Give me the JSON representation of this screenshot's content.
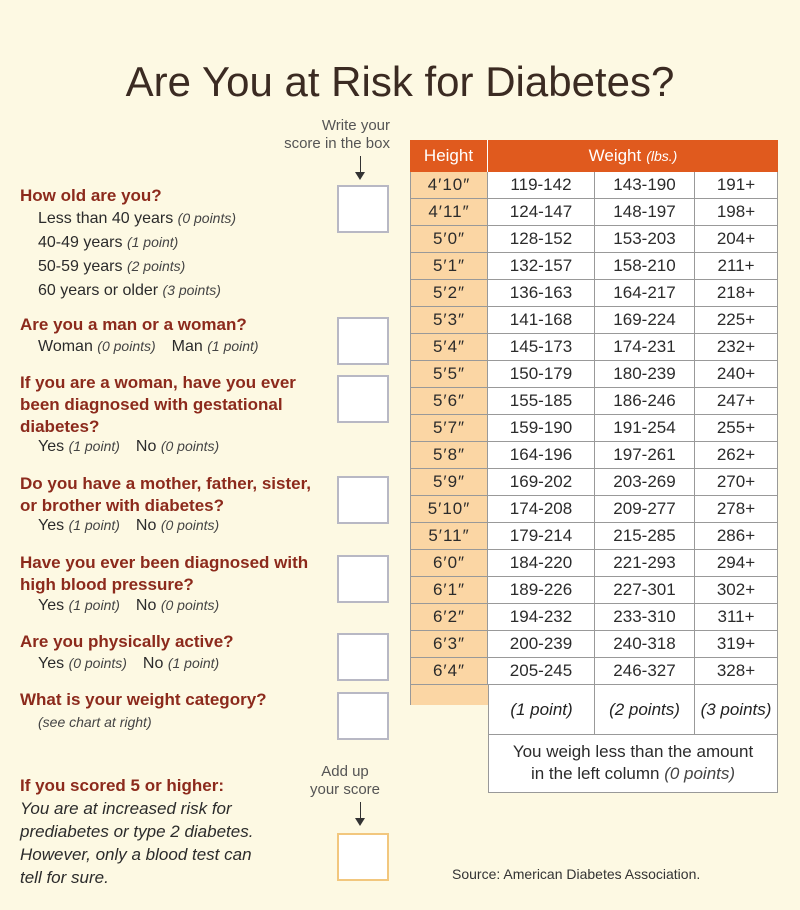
{
  "title": "Are You at Risk for Diabetes?",
  "score_hint": [
    "Write your",
    "score in the box"
  ],
  "questions": [
    {
      "question": "How old are you?",
      "options": [
        {
          "label": "Less than 40 years",
          "points": "(0 points)"
        },
        {
          "label": "40-49 years",
          "points": "(1 point)"
        },
        {
          "label": "50-59 years",
          "points": "(2 points)"
        },
        {
          "label": "60 years or older",
          "points": "(3 points)"
        }
      ]
    },
    {
      "question": "Are you a man or a woman?",
      "options": [
        {
          "label": "Woman",
          "points": "(0 points)"
        },
        {
          "label": "Man",
          "points": "(1 point)"
        }
      ]
    },
    {
      "question": "If you are a woman, have you ever been diagnosed with gestational diabetes?",
      "options": [
        {
          "label": "Yes",
          "points": "(1 point)"
        },
        {
          "label": "No",
          "points": "(0 points)"
        }
      ]
    },
    {
      "question": "Do you have a mother, father, sister, or brother with diabetes?",
      "options": [
        {
          "label": "Yes",
          "points": "(1 point)"
        },
        {
          "label": "No",
          "points": "(0 points)"
        }
      ]
    },
    {
      "question": "Have you ever been diagnosed with high blood pressure?",
      "options": [
        {
          "label": "Yes",
          "points": "(1 point)"
        },
        {
          "label": "No",
          "points": "(0 points)"
        }
      ]
    },
    {
      "question": "Are you physically active?",
      "options": [
        {
          "label": "Yes",
          "points": "(0 points)"
        },
        {
          "label": "No",
          "points": "(1 point)"
        }
      ]
    },
    {
      "question": "What is your weight category?",
      "note": "(see chart at right)"
    }
  ],
  "add_up": [
    "Add up",
    "your score"
  ],
  "result": {
    "heading": "If you scored 5 or higher:",
    "body": "You are at increased risk for prediabetes or type 2 diabetes. However, only a blood test can tell for sure."
  },
  "table": {
    "header": {
      "height": "Height",
      "weight": "Weight",
      "unit": "(lbs.)"
    },
    "rows": [
      [
        "4′10″",
        "119-142",
        "143-190",
        "191+"
      ],
      [
        "4′11″",
        "124-147",
        "148-197",
        "198+"
      ],
      [
        "5′0″",
        "128-152",
        "153-203",
        "204+"
      ],
      [
        "5′1″",
        "132-157",
        "158-210",
        "211+"
      ],
      [
        "5′2″",
        "136-163",
        "164-217",
        "218+"
      ],
      [
        "5′3″",
        "141-168",
        "169-224",
        "225+"
      ],
      [
        "5′4″",
        "145-173",
        "174-231",
        "232+"
      ],
      [
        "5′5″",
        "150-179",
        "180-239",
        "240+"
      ],
      [
        "5′6″",
        "155-185",
        "186-246",
        "247+"
      ],
      [
        "5′7″",
        "159-190",
        "191-254",
        "255+"
      ],
      [
        "5′8″",
        "164-196",
        "197-261",
        "262+"
      ],
      [
        "5′9″",
        "169-202",
        "203-269",
        "270+"
      ],
      [
        "5′10″",
        "174-208",
        "209-277",
        "278+"
      ],
      [
        "5′11″",
        "179-214",
        "215-285",
        "286+"
      ],
      [
        "6′0″",
        "184-220",
        "221-293",
        "294+"
      ],
      [
        "6′1″",
        "189-226",
        "227-301",
        "302+"
      ],
      [
        "6′2″",
        "194-232",
        "233-310",
        "311+"
      ],
      [
        "6′3″",
        "200-239",
        "240-318",
        "319+"
      ],
      [
        "6′4″",
        "205-245",
        "246-327",
        "328+"
      ]
    ],
    "points": [
      "(1 point)",
      "(2 points)",
      "(3 points)"
    ],
    "footer": {
      "text": "You weigh less than the amount in the left column",
      "points": "(0 points)"
    }
  },
  "source": "Source: American Diabetes Association."
}
